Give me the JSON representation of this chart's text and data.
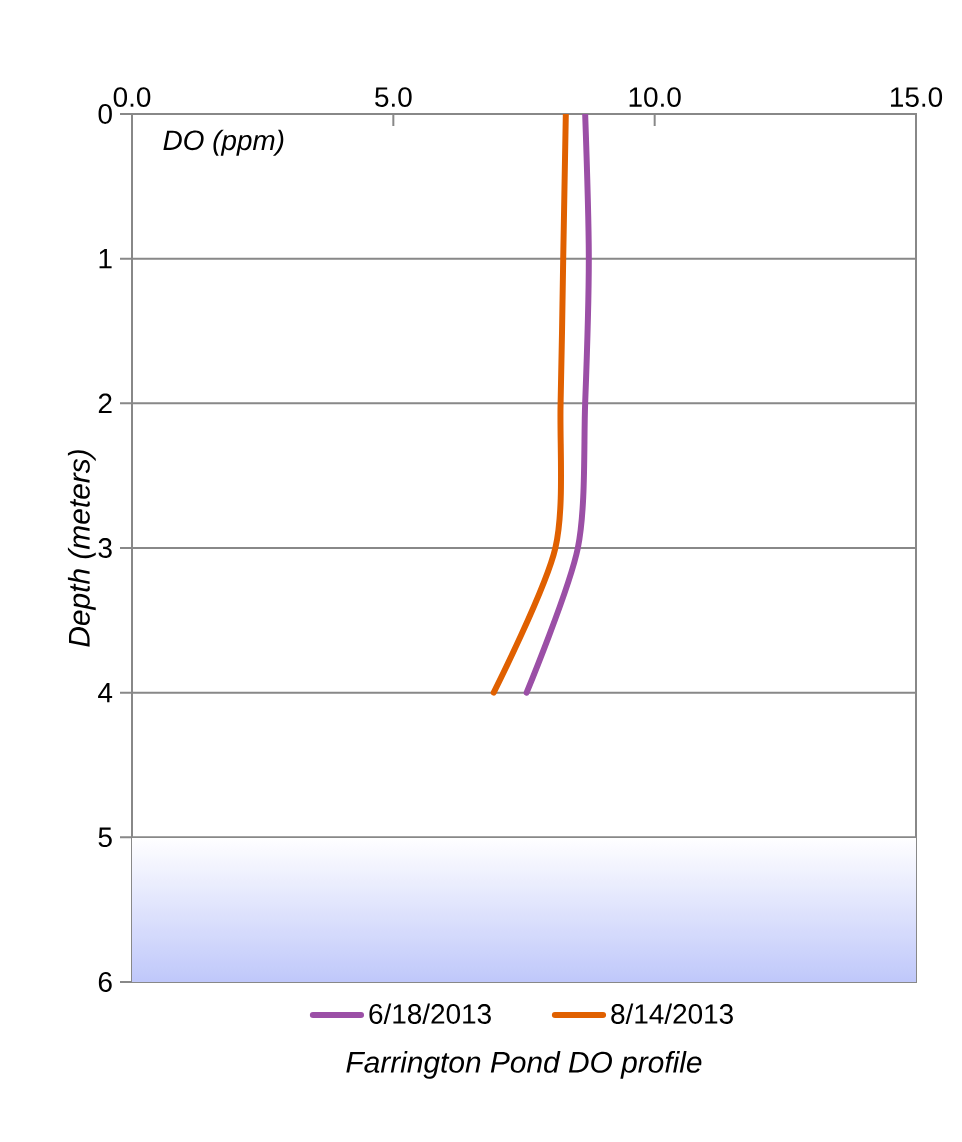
{
  "chart_data": {
    "type": "line",
    "title": "Farrington Pond DO profile",
    "ylabel": "Depth (meters)",
    "annotations": [
      "DO (ppm)"
    ],
    "series": [
      {
        "name": "6/18/2013",
        "color": "#9b4fa6",
        "x": [
          8.67,
          8.74,
          8.67,
          8.53,
          7.55
        ],
        "values": [
          0,
          1,
          2,
          3,
          4
        ]
      },
      {
        "name": "8/14/2013",
        "color": "#e06000",
        "x": [
          8.3,
          8.25,
          8.2,
          8.1,
          6.92
        ],
        "values": [
          0,
          1,
          2,
          3,
          4
        ]
      }
    ],
    "xlim": [
      0,
      15
    ],
    "xticks": [
      {
        "value": 0,
        "label": "0.0"
      },
      {
        "value": 5,
        "label": "5.0"
      },
      {
        "value": 10,
        "label": "10.0"
      },
      {
        "value": 15,
        "label": "15.0"
      }
    ],
    "ylim": [
      6,
      0
    ],
    "yticks": [
      0,
      1,
      2,
      3,
      4,
      5,
      6
    ],
    "bands": [
      {
        "axis": "y",
        "from": 5,
        "to": 6,
        "color": "#c0c8fa"
      }
    ],
    "grid": "y",
    "legend": "bottom",
    "marker": "none",
    "line_style": "solid"
  }
}
